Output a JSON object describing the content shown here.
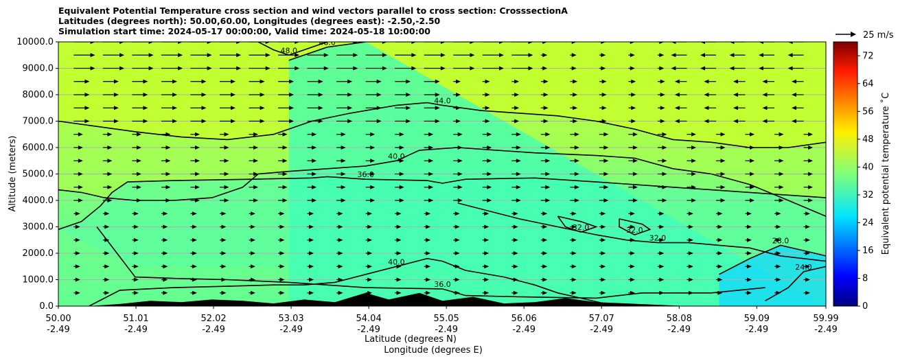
{
  "title_lines": [
    "Equivalent Potential Temperature cross section and wind vectors parallel to cross section: CrosssectionA",
    "Latitudes (degrees north): 50.00,60.00, Longitudes (degrees east): -2.50,-2.50",
    "Simulation start time: 2024-05-17 00:00:00, Valid time: 2024-05-18 10:00:00"
  ],
  "chart_data": {
    "type": "filled-contour cross section with wind vectors",
    "title": "Equivalent Potential Temperature cross section and wind vectors parallel to cross section: CrosssectionA",
    "ylabel": "Altitude (meters)",
    "xlabel_lines": [
      "Latitude (degrees N)",
      "Longitude (degrees E)"
    ],
    "ylim": [
      0,
      10000
    ],
    "y_ticks": [
      "0.0",
      "1000.0",
      "2000.0",
      "3000.0",
      "4000.0",
      "5000.0",
      "6000.0",
      "7000.0",
      "8000.0",
      "9000.0",
      "10000.0"
    ],
    "y_tick_values": [
      0,
      1000,
      2000,
      3000,
      4000,
      5000,
      6000,
      7000,
      8000,
      9000,
      10000
    ],
    "xlim": [
      50.0,
      59.99
    ],
    "x_ticks": [
      {
        "lat": "50.00",
        "lon": "-2.49",
        "value": 50.0
      },
      {
        "lat": "51.01",
        "lon": "-2.49",
        "value": 51.01
      },
      {
        "lat": "52.02",
        "lon": "-2.49",
        "value": 52.02
      },
      {
        "lat": "53.03",
        "lon": "-2.49",
        "value": 53.03
      },
      {
        "lat": "54.04",
        "lon": "-2.49",
        "value": 54.04
      },
      {
        "lat": "55.05",
        "lon": "-2.49",
        "value": 55.05
      },
      {
        "lat": "56.06",
        "lon": "-2.49",
        "value": 56.06
      },
      {
        "lat": "57.07",
        "lon": "-2.49",
        "value": 57.07
      },
      {
        "lat": "58.08",
        "lon": "-2.49",
        "value": 58.08
      },
      {
        "lat": "59.09",
        "lon": "-2.49",
        "value": 59.09
      },
      {
        "lat": "59.99",
        "lon": "-2.49",
        "value": 59.99
      }
    ],
    "grid": "horizontal",
    "colorbar": {
      "label": "Equivalent potential temperature ˚C",
      "range": [
        0,
        76
      ],
      "ticks": [
        "0",
        "8",
        "16",
        "24",
        "32",
        "40",
        "48",
        "56",
        "64",
        "72"
      ],
      "tick_values": [
        0,
        8,
        16,
        24,
        32,
        40,
        48,
        56,
        64,
        72
      ],
      "colormap": "jet"
    },
    "quiver_key": {
      "label": "25 m/s",
      "speed": 25
    },
    "contours": [
      {
        "level": 36,
        "label": "36.0",
        "points": [
          [
            50.0,
            2900
          ],
          [
            50.3,
            3200
          ],
          [
            50.55,
            3800
          ],
          [
            50.7,
            4300
          ],
          [
            50.9,
            4700
          ],
          [
            51.5,
            4750
          ],
          [
            52.5,
            4800
          ],
          [
            53.3,
            4850
          ],
          [
            53.5,
            4900
          ],
          [
            54.0,
            4800
          ],
          [
            54.8,
            4750
          ],
          [
            55.0,
            4650
          ],
          [
            55.3,
            4800
          ],
          [
            56.2,
            4850
          ],
          [
            57.0,
            4700
          ],
          [
            57.5,
            4600
          ],
          [
            58.5,
            4400
          ],
          [
            59.5,
            4200
          ],
          [
            59.99,
            4100
          ]
        ]
      },
      {
        "level": 36,
        "label": "36.0",
        "points": [
          [
            50.5,
            3000
          ],
          [
            51.0,
            1100
          ],
          [
            51.5,
            1050
          ],
          [
            52.2,
            1000
          ],
          [
            53.0,
            900
          ],
          [
            54.0,
            700
          ],
          [
            55.0,
            650
          ],
          [
            55.3,
            400
          ],
          [
            56.0,
            350
          ],
          [
            57.0,
            300
          ],
          [
            57.6,
            500
          ],
          [
            58.5,
            500
          ],
          [
            59.2,
            700
          ]
        ]
      },
      {
        "level": 40,
        "label": "40.0",
        "points": [
          [
            50.4,
            0
          ],
          [
            50.8,
            600
          ],
          [
            51.5,
            700
          ],
          [
            52.2,
            750
          ],
          [
            52.8,
            800
          ],
          [
            53.2,
            800
          ],
          [
            53.6,
            900
          ],
          [
            54.0,
            1200
          ],
          [
            54.4,
            1500
          ],
          [
            54.8,
            1800
          ],
          [
            55.0,
            1700
          ],
          [
            55.3,
            1350
          ],
          [
            55.8,
            1100
          ],
          [
            56.2,
            800
          ],
          [
            56.5,
            500
          ],
          [
            56.8,
            300
          ],
          [
            57.1,
            100
          ]
        ]
      },
      {
        "level": 40,
        "label": "40.0",
        "points": [
          [
            50.0,
            4400
          ],
          [
            50.3,
            4300
          ],
          [
            50.6,
            4100
          ],
          [
            51.0,
            4000
          ],
          [
            51.5,
            4000
          ],
          [
            52.0,
            4100
          ],
          [
            52.4,
            4500
          ],
          [
            52.6,
            5000
          ],
          [
            53.0,
            5100
          ],
          [
            53.5,
            5200
          ],
          [
            54.0,
            5300
          ],
          [
            54.4,
            5500
          ],
          [
            54.7,
            5900
          ],
          [
            55.2,
            6000
          ],
          [
            55.7,
            5900
          ],
          [
            56.2,
            5800
          ],
          [
            57.0,
            5700
          ],
          [
            57.5,
            5600
          ],
          [
            58.0,
            5200
          ],
          [
            58.5,
            5000
          ],
          [
            59.0,
            4600
          ],
          [
            59.5,
            4000
          ],
          [
            59.99,
            3400
          ]
        ]
      },
      {
        "level": 44,
        "label": "44.0",
        "points": [
          [
            50.0,
            7000
          ],
          [
            50.5,
            6800
          ],
          [
            51.0,
            6600
          ],
          [
            51.6,
            6400
          ],
          [
            52.2,
            6300
          ],
          [
            52.8,
            6500
          ],
          [
            53.3,
            7000
          ],
          [
            53.8,
            7300
          ],
          [
            54.4,
            7600
          ],
          [
            54.8,
            7700
          ],
          [
            55.0,
            7600
          ],
          [
            55.5,
            7400
          ],
          [
            56.0,
            7300
          ],
          [
            56.5,
            7200
          ],
          [
            57.0,
            7000
          ],
          [
            57.5,
            6700
          ],
          [
            58.0,
            6300
          ],
          [
            58.5,
            6200
          ],
          [
            59.0,
            6000
          ],
          [
            59.5,
            6000
          ],
          [
            59.99,
            6200
          ]
        ]
      },
      {
        "level": 48,
        "label": "48.0",
        "points": [
          [
            52.6,
            10000
          ],
          [
            52.8,
            9700
          ],
          [
            53.0,
            9500
          ],
          [
            53.2,
            9700
          ],
          [
            53.5,
            10000
          ]
        ]
      },
      {
        "level": 48,
        "label": "48.0",
        "points": [
          [
            53.0,
            9300
          ],
          [
            53.5,
            9800
          ],
          [
            54.0,
            10000
          ]
        ]
      },
      {
        "level": 32,
        "label": "32.0",
        "points": [
          [
            55.2,
            3900
          ],
          [
            55.6,
            3600
          ],
          [
            56.0,
            3300
          ],
          [
            56.5,
            3000
          ],
          [
            57.0,
            2700
          ],
          [
            57.4,
            2500
          ],
          [
            57.8,
            2400
          ],
          [
            58.2,
            2400
          ],
          [
            58.6,
            2300
          ],
          [
            59.0,
            2200
          ],
          [
            59.4,
            1900
          ],
          [
            59.99,
            1700
          ]
        ]
      },
      {
        "level": 32,
        "label": "32.0",
        "points": [
          [
            56.5,
            3400
          ],
          [
            56.8,
            3200
          ],
          [
            57.0,
            3000
          ],
          [
            56.8,
            2800
          ],
          [
            56.6,
            3000
          ],
          [
            56.5,
            3400
          ]
        ]
      },
      {
        "level": 32,
        "label": "32.0",
        "points": [
          [
            57.3,
            3300
          ],
          [
            57.6,
            3100
          ],
          [
            57.7,
            2900
          ],
          [
            57.5,
            2700
          ],
          [
            57.3,
            3000
          ],
          [
            57.3,
            3300
          ]
        ]
      },
      {
        "level": 28,
        "label": "28.0",
        "points": [
          [
            58.6,
            1200
          ],
          [
            59.0,
            1800
          ],
          [
            59.4,
            2300
          ],
          [
            59.7,
            2100
          ],
          [
            59.99,
            1900
          ]
        ]
      },
      {
        "level": 24,
        "label": "24.0",
        "points": [
          [
            59.2,
            200
          ],
          [
            59.5,
            700
          ],
          [
            59.7,
            1300
          ],
          [
            59.99,
            1500
          ]
        ]
      }
    ],
    "terrain": {
      "label": "",
      "points": [
        [
          50.4,
          0
        ],
        [
          50.8,
          80
        ],
        [
          51.2,
          200
        ],
        [
          51.6,
          150
        ],
        [
          52.0,
          250
        ],
        [
          52.4,
          200
        ],
        [
          52.8,
          100
        ],
        [
          53.2,
          250
        ],
        [
          53.6,
          150
        ],
        [
          54.0,
          500
        ],
        [
          54.3,
          250
        ],
        [
          54.7,
          500
        ],
        [
          55.0,
          200
        ],
        [
          55.4,
          350
        ],
        [
          55.8,
          100
        ],
        [
          56.2,
          150
        ],
        [
          56.6,
          300
        ],
        [
          57.0,
          150
        ],
        [
          57.4,
          100
        ],
        [
          57.8,
          50
        ],
        [
          58.2,
          0
        ]
      ]
    }
  }
}
